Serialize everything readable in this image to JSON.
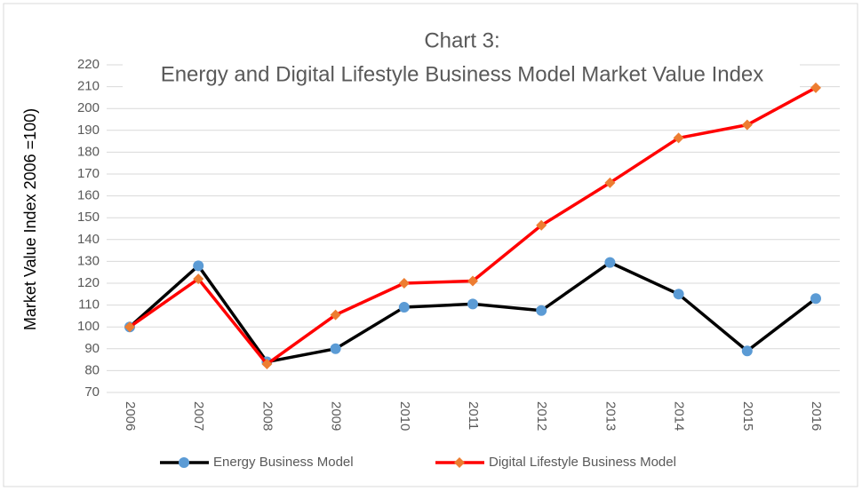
{
  "chart_data": {
    "type": "line",
    "title": "Chart 3:",
    "subtitle": "Energy and Digital Lifestyle Business Model  Market Value Index",
    "y_label": "Market Value Index 2006 =100)",
    "categories": [
      "2006",
      "2007",
      "2008",
      "2009",
      "2010",
      "2011",
      "2012",
      "2013",
      "2014",
      "2015",
      "2016"
    ],
    "series": [
      {
        "name": "Energy Business Model",
        "color": "#000000",
        "marker_color": "#5b9bd5",
        "marker": "circle",
        "values": [
          100,
          128,
          84,
          90,
          109,
          110.5,
          107.5,
          129.5,
          115,
          89,
          113
        ]
      },
      {
        "name": "Digital Lifestyle Business Model",
        "color": "#ff0000",
        "marker_color": "#ed7d31",
        "marker": "diamond",
        "values": [
          100,
          122,
          83,
          105.5,
          120,
          121,
          146.5,
          166,
          186.5,
          192.5,
          209.5
        ]
      }
    ],
    "ylim": [
      70,
      220
    ],
    "yticks": [
      70,
      80,
      90,
      100,
      110,
      120,
      130,
      140,
      150,
      160,
      170,
      180,
      190,
      200,
      210,
      220
    ],
    "grid": true,
    "legend": "bottom"
  }
}
